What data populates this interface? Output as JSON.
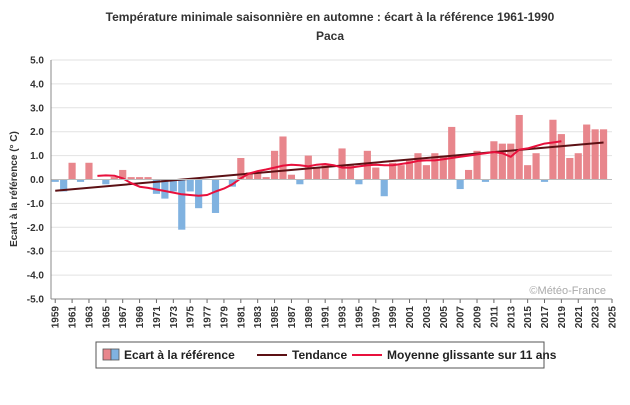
{
  "chart_data": {
    "type": "bar",
    "title": "Température minimale saisonnière en automne : écart à la référence 1961-1990",
    "subtitle": "Paca",
    "ylabel": "Ecart à la référence (° C)",
    "xlabel": "",
    "ylim": [
      -5.0,
      5.0
    ],
    "yticks": [
      "5.0",
      "4.0",
      "3.0",
      "2.0",
      "1.0",
      "0.0",
      "-1.0",
      "-2.0",
      "-3.0",
      "-4.0",
      "-5.0"
    ],
    "xlim": [
      1959,
      2025
    ],
    "xticks": [
      "1959",
      "1961",
      "1963",
      "1965",
      "1967",
      "1969",
      "1971",
      "1973",
      "1975",
      "1977",
      "1979",
      "1981",
      "1983",
      "1985",
      "1987",
      "1989",
      "1991",
      "1993",
      "1995",
      "1997",
      "1999",
      "2001",
      "2003",
      "2005",
      "2007",
      "2009",
      "2011",
      "2013",
      "2015",
      "2017",
      "2019",
      "2021",
      "2023",
      "2025"
    ],
    "grid": true,
    "legend_position": "bottom",
    "credit": "©Météo-France",
    "colors": {
      "positive": "#e8868c",
      "negative": "#80b2e0",
      "trend": "#5c1014",
      "moving": "#e8103c"
    },
    "legend": {
      "bars": "Ecart à la référence",
      "trend": "Tendance",
      "moving": "Moyenne glissante sur 11 ans"
    },
    "years": [
      1959,
      1960,
      1961,
      1962,
      1963,
      1964,
      1965,
      1966,
      1967,
      1968,
      1969,
      1970,
      1971,
      1972,
      1973,
      1974,
      1975,
      1976,
      1977,
      1978,
      1979,
      1980,
      1981,
      1982,
      1983,
      1984,
      1985,
      1986,
      1987,
      1988,
      1989,
      1990,
      1991,
      1992,
      1993,
      1994,
      1995,
      1996,
      1997,
      1998,
      1999,
      2000,
      2001,
      2002,
      2003,
      2004,
      2005,
      2006,
      2007,
      2008,
      2009,
      2010,
      2011,
      2012,
      2013,
      2014,
      2015,
      2016,
      2017,
      2018,
      2019,
      2020,
      2021,
      2022,
      2023,
      2024
    ],
    "values": [
      -0.1,
      -0.5,
      0.7,
      -0.1,
      0.7,
      0.0,
      -0.2,
      0.1,
      0.4,
      0.1,
      0.1,
      0.1,
      -0.6,
      -0.8,
      -0.5,
      -2.1,
      -0.5,
      -1.2,
      0.0,
      -1.4,
      0.0,
      -0.3,
      0.9,
      0.3,
      0.3,
      0.1,
      1.2,
      1.8,
      0.2,
      -0.2,
      1.0,
      0.5,
      0.6,
      0.0,
      1.3,
      0.6,
      -0.2,
      1.2,
      0.5,
      -0.7,
      0.7,
      0.6,
      0.8,
      1.1,
      0.6,
      1.1,
      1.0,
      2.2,
      -0.4,
      0.4,
      1.2,
      -0.1,
      1.6,
      1.5,
      1.5,
      2.7,
      0.6,
      1.1,
      -0.1,
      2.5,
      1.9,
      0.9,
      1.1,
      2.3,
      2.1,
      2.1
    ],
    "trend": {
      "x": [
        1959,
        2024
      ],
      "y": [
        -0.47,
        1.55
      ]
    },
    "moving_average": {
      "x": [
        1964,
        1965,
        1966,
        1967,
        1968,
        1969,
        1970,
        1971,
        1972,
        1973,
        1974,
        1975,
        1976,
        1977,
        1978,
        1979,
        1980,
        1981,
        1982,
        1983,
        1984,
        1985,
        1986,
        1987,
        1988,
        1989,
        1990,
        1991,
        1992,
        1993,
        1994,
        1995,
        1996,
        1997,
        1998,
        1999,
        2000,
        2001,
        2002,
        2003,
        2004,
        2005,
        2006,
        2007,
        2008,
        2009,
        2010,
        2011,
        2012,
        2013,
        2014,
        2015,
        2016,
        2017,
        2018,
        2019
      ],
      "y": [
        0.15,
        0.17,
        0.16,
        0.05,
        -0.15,
        -0.3,
        -0.35,
        -0.42,
        -0.48,
        -0.55,
        -0.62,
        -0.65,
        -0.68,
        -0.65,
        -0.5,
        -0.38,
        -0.2,
        0.05,
        0.25,
        0.35,
        0.42,
        0.5,
        0.58,
        0.62,
        0.6,
        0.55,
        0.62,
        0.65,
        0.6,
        0.5,
        0.5,
        0.55,
        0.6,
        0.62,
        0.6,
        0.6,
        0.65,
        0.7,
        0.78,
        0.8,
        0.8,
        0.85,
        0.9,
        0.95,
        1.0,
        1.05,
        1.1,
        1.15,
        1.1,
        0.95,
        1.25,
        1.3,
        1.4,
        1.5,
        1.55,
        1.6
      ]
    }
  }
}
